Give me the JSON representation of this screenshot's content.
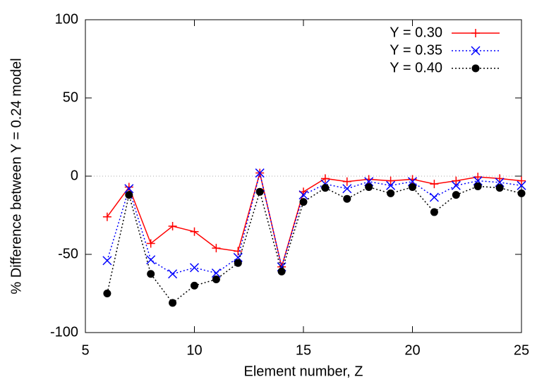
{
  "chart_data": {
    "type": "line",
    "xlabel": "Element number, Z",
    "ylabel": "% Difference between Y = 0.24 model",
    "x": [
      6,
      7,
      8,
      9,
      10,
      11,
      12,
      13,
      14,
      15,
      16,
      17,
      18,
      19,
      20,
      21,
      22,
      23,
      24,
      25
    ],
    "series": [
      {
        "name": "Y = 0.30",
        "color": "#ff0000",
        "dash": "solid",
        "marker": "plus",
        "values": [
          -26,
          -7,
          -43,
          -32,
          -35.5,
          -46,
          -48,
          2,
          -58,
          -10,
          -1.5,
          -3.5,
          -2,
          -3,
          -2,
          -5,
          -3,
          -0.5,
          -1.5,
          -3
        ]
      },
      {
        "name": "Y = 0.35",
        "color": "#0000ff",
        "dash": "dotted",
        "marker": "cross",
        "values": [
          -54,
          -8,
          -53.5,
          -62.5,
          -58.5,
          -62,
          -52,
          2,
          -58,
          -12,
          -5,
          -8,
          -3.5,
          -6,
          -3.5,
          -13.5,
          -6,
          -3,
          -4,
          -6
        ]
      },
      {
        "name": "Y = 0.40",
        "color": "#000000",
        "dash": "dotted",
        "marker": "circle",
        "values": [
          -75,
          -12,
          -62.5,
          -81,
          -70,
          -66,
          -55.5,
          -10,
          -61,
          -16.5,
          -7.5,
          -14.5,
          -7,
          -11,
          -7,
          -23,
          -12,
          -6.5,
          -7.5,
          -11
        ]
      }
    ],
    "xlim": [
      5,
      25
    ],
    "xticks": [
      5,
      10,
      15,
      20,
      25
    ],
    "ylim": [
      -100,
      100
    ],
    "yticks": [
      -100,
      -50,
      0,
      50,
      100
    ],
    "zero_line": true,
    "legend": "top-right"
  }
}
